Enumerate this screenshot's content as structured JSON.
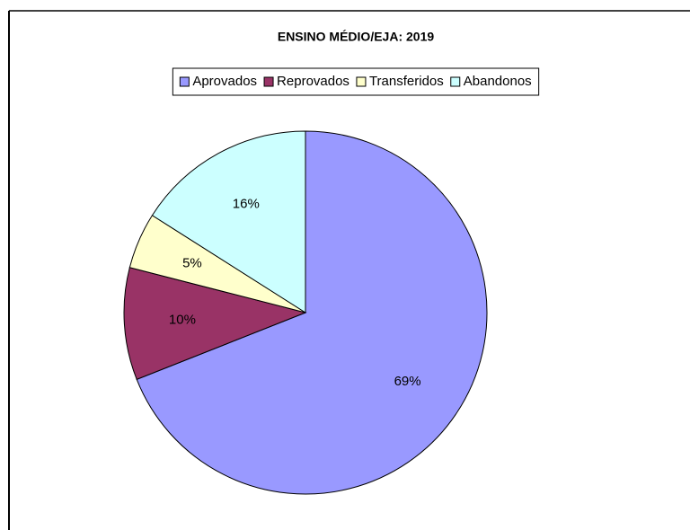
{
  "chart_data": {
    "type": "pie",
    "title": "ENSINO MÉDIO/EJA: 2019",
    "categories": [
      "Aprovados",
      "Reprovados",
      "Transferidos",
      "Abandonos"
    ],
    "values": [
      69,
      10,
      5,
      16
    ],
    "value_labels": [
      "69%",
      "10%",
      "5%",
      "16%"
    ],
    "colors": [
      "#9999ff",
      "#993366",
      "#ffffcc",
      "#ccffff"
    ],
    "legend": "top"
  }
}
